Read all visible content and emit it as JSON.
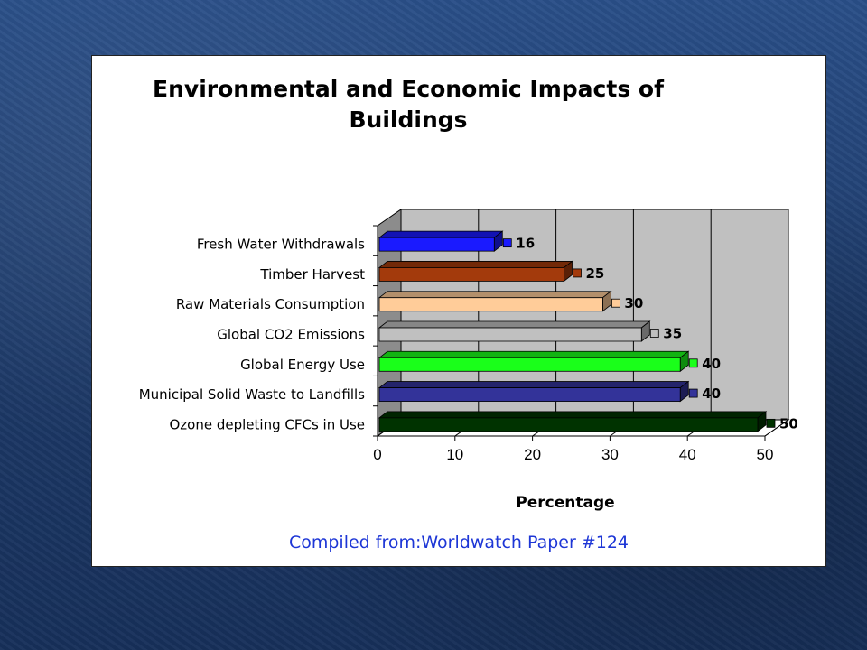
{
  "caption": "Compiled from:Worldwatch Paper #124",
  "chart_data": {
    "type": "bar",
    "orientation": "horizontal",
    "title_lines": [
      "Environmental and Economic Impacts of",
      "Buildings"
    ],
    "xlabel": "Percentage",
    "ylabel": "",
    "xlim": [
      0,
      50
    ],
    "xticks": [
      0,
      10,
      20,
      30,
      40,
      50
    ],
    "grid": "vertical",
    "categories": [
      "Fresh Water Withdrawals",
      "Timber Harvest",
      "Raw Materials Consumption",
      "Global CO2 Emissions",
      "Global Energy Use",
      "Municipal Solid Waste to Landfills",
      "Ozone depleting CFCs in Use"
    ],
    "values": [
      16,
      25,
      30,
      35,
      40,
      40,
      50
    ],
    "colors": [
      "#1a1aff",
      "#a33a0c",
      "#ffcc99",
      "#c0c0c0",
      "#1aff1a",
      "#333399",
      "#003300"
    ]
  }
}
